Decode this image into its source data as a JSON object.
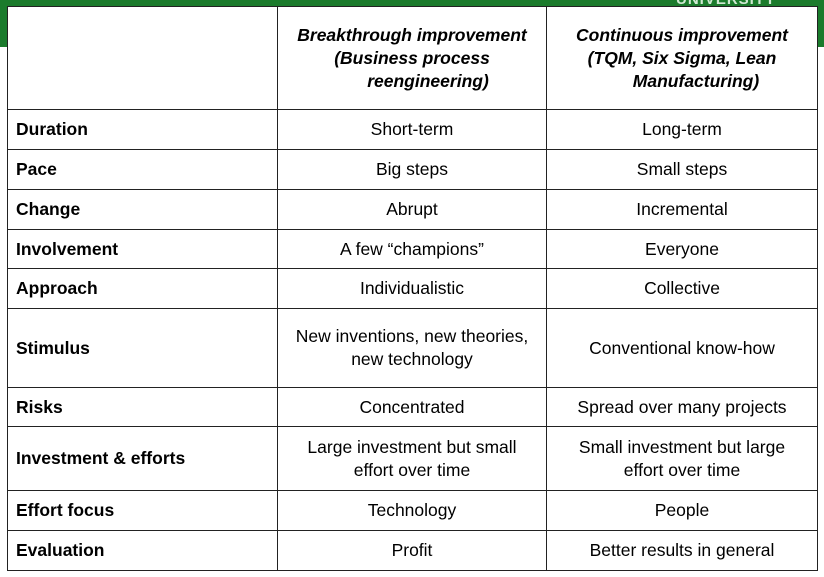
{
  "banner": {
    "partial_text": "UNIVERSITY",
    "color": "#1b7b2c"
  },
  "table": {
    "columns": [
      {
        "lines": [
          "Breakthrough improvement",
          "(Business process",
          "reengineering)"
        ]
      },
      {
        "lines": [
          "Continuous improvement",
          "(TQM, Six Sigma, Lean",
          "Manufacturing)"
        ]
      }
    ],
    "rows": [
      {
        "label": "Duration",
        "breakthrough": [
          "Short-term"
        ],
        "continuous": [
          "Long-term"
        ]
      },
      {
        "label": "Pace",
        "breakthrough": [
          "Big steps"
        ],
        "continuous": [
          "Small steps"
        ]
      },
      {
        "label": "Change",
        "breakthrough": [
          "Abrupt"
        ],
        "continuous": [
          "Incremental"
        ]
      },
      {
        "label": "Involvement",
        "breakthrough": [
          "A few “champions”"
        ],
        "continuous": [
          "Everyone"
        ]
      },
      {
        "label": "Approach",
        "breakthrough": [
          "Individualistic"
        ],
        "continuous": [
          "Collective"
        ]
      },
      {
        "label": "Stimulus",
        "breakthrough": [
          "New inventions, new theories,",
          "new technology"
        ],
        "continuous": [
          "Conventional know-how"
        ]
      },
      {
        "label": "Risks",
        "breakthrough": [
          "Concentrated"
        ],
        "continuous": [
          "Spread over many projects"
        ]
      },
      {
        "label": "Investment & efforts",
        "breakthrough": [
          "Large investment but small",
          "effort over time"
        ],
        "continuous": [
          "Small investment but large",
          "effort over time"
        ]
      },
      {
        "label": "Effort focus",
        "breakthrough": [
          "Technology"
        ],
        "continuous": [
          "People"
        ]
      },
      {
        "label": "Evaluation",
        "breakthrough": [
          "Profit"
        ],
        "continuous": [
          "Better results in general"
        ]
      }
    ]
  }
}
